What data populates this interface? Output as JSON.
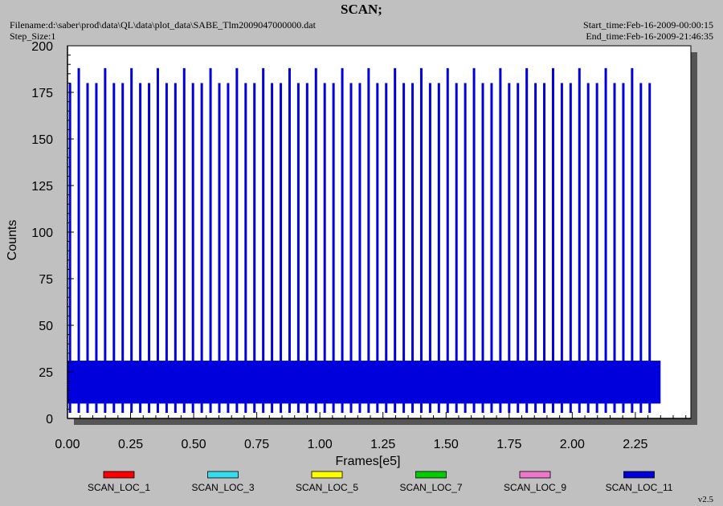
{
  "header": {
    "title": "SCAN;",
    "filename": "Filename:d:\\saber\\prod\\data\\QL\\data\\plot_data\\SABE_Tlm2009047000000.dat",
    "step_size": "Step_Size:1",
    "start_time": "Start_time:Feb-16-2009-00:00:15",
    "end_time": "End_time:Feb-16-2009-21:46:35"
  },
  "version": "v2.5",
  "colors": {
    "background": "#c0c0c0",
    "plot_bg": "#ffffff",
    "scan_loc_1": "#ff0000",
    "scan_loc_3": "#33ddee",
    "scan_loc_5": "#ffff00",
    "scan_loc_7": "#00cc00",
    "scan_loc_9": "#ee77cc",
    "scan_loc_11": "#0000dd"
  },
  "chart_data": {
    "type": "line",
    "xlabel": "Frames[e5]",
    "ylabel": "Counts",
    "xlim": [
      0,
      2.47
    ],
    "ylim": [
      0,
      200
    ],
    "x_ticks": [
      "0.00",
      "0.25",
      "0.50",
      "0.75",
      "1.00",
      "1.25",
      "1.50",
      "1.75",
      "2.00",
      "2.25"
    ],
    "y_ticks": [
      "0",
      "25",
      "50",
      "75",
      "100",
      "125",
      "150",
      "175",
      "200"
    ],
    "x_tick_values": [
      0,
      0.25,
      0.5,
      0.75,
      1.0,
      1.25,
      1.5,
      1.75,
      2.0,
      2.25
    ],
    "y_tick_values": [
      0,
      25,
      50,
      75,
      100,
      125,
      150,
      175,
      200
    ],
    "grid": false,
    "legend_position": "bottom",
    "series": [
      {
        "name": "SCAN_LOC_1",
        "color": "#ff0000"
      },
      {
        "name": "SCAN_LOC_3",
        "color": "#33ddee"
      },
      {
        "name": "SCAN_LOC_5",
        "color": "#ffff00"
      },
      {
        "name": "SCAN_LOC_7",
        "color": "#00cc00"
      },
      {
        "name": "SCAN_LOC_9",
        "color": "#ee77cc"
      },
      {
        "name": "SCAN_LOC_11",
        "color": "#0000dd"
      }
    ],
    "dense_band": {
      "x_range": [
        0.0,
        2.35
      ],
      "y_range": [
        8,
        31
      ]
    },
    "spikes": {
      "x_start": 0.01,
      "x_end": 2.33,
      "x_spacing": 0.0348,
      "low_peak": 180,
      "high_peak": 188,
      "high_every": 3,
      "baseline": 3
    }
  }
}
